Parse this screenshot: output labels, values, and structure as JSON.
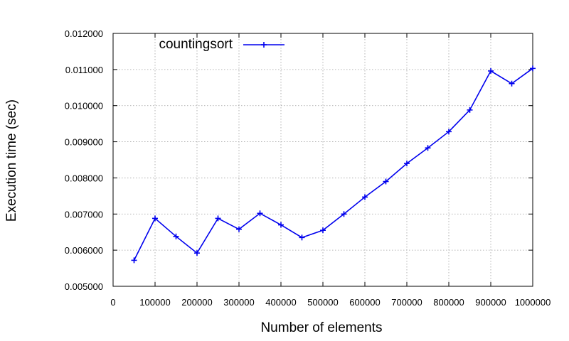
{
  "chart_data": {
    "type": "line",
    "title": "",
    "xlabel": "Number of elements",
    "ylabel": "Execution time (sec)",
    "xlim": [
      0,
      1000000
    ],
    "ylim": [
      0.005,
      0.012
    ],
    "xticks": [
      "0",
      "100000",
      "200000",
      "300000",
      "400000",
      "500000",
      "600000",
      "700000",
      "800000",
      "900000",
      "1000000"
    ],
    "xtick_values": [
      0,
      100000,
      200000,
      300000,
      400000,
      500000,
      600000,
      700000,
      800000,
      900000,
      1000000
    ],
    "yticks": [
      "0.005000",
      "0.006000",
      "0.007000",
      "0.008000",
      "0.009000",
      "0.010000",
      "0.011000",
      "0.012000"
    ],
    "ytick_values": [
      0.005,
      0.006,
      0.007,
      0.008,
      0.009,
      0.01,
      0.011,
      0.012
    ],
    "grid": true,
    "legend_position": "top-left",
    "series": [
      {
        "name": "countingsort",
        "color": "#0000ee",
        "marker": "plus",
        "x": [
          50000,
          100000,
          150000,
          200000,
          250000,
          300000,
          350000,
          400000,
          450000,
          500000,
          550000,
          600000,
          650000,
          700000,
          750000,
          800000,
          850000,
          900000,
          950000,
          1000000
        ],
        "y": [
          0.00572,
          0.00688,
          0.00638,
          0.00592,
          0.00688,
          0.00658,
          0.00702,
          0.0067,
          0.00635,
          0.00655,
          0.007,
          0.00747,
          0.0079,
          0.0084,
          0.00883,
          0.00928,
          0.00988,
          0.01096,
          0.01061,
          0.01103
        ]
      }
    ]
  }
}
